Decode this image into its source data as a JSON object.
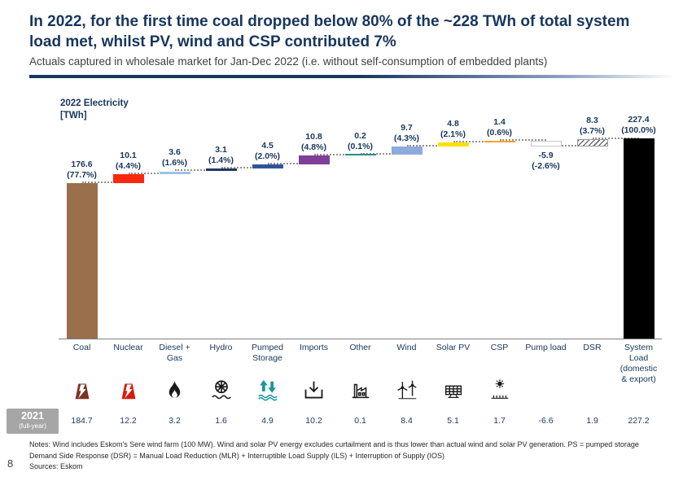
{
  "header": {
    "title": "In 2022, for the first time coal dropped below 80% of the ~228 TWh of total system load met, whilst PV, wind and CSP contributed 7%",
    "subtitle": "Actuals captured in wholesale market for Jan-Dec 2022 (i.e. without self-consumption of embedded plants)"
  },
  "colors": {
    "accent": "#17365D",
    "divider": "#17365D",
    "connector": "#929292",
    "year_box": "#A6A6A6"
  },
  "chart_data": {
    "type": "bar",
    "subtype": "waterfall",
    "unit": "TWh",
    "axis_title": [
      "2022 Electricity",
      "[TWh]"
    ],
    "grid": false,
    "total": 227.4,
    "categories": [
      {
        "label": "Coal",
        "value": 176.6,
        "value_label": "176.6",
        "pct_label": "(77.7%)",
        "color": "#9A6F4C",
        "kind": "delta",
        "icon": "coal-plant-icon"
      },
      {
        "label": "Nuclear",
        "value": 10.1,
        "value_label": "10.1",
        "pct_label": "(4.4%)",
        "color": "#F8280E",
        "kind": "delta",
        "icon": "nuclear-plant-icon"
      },
      {
        "label": "Diesel + Gas",
        "value": 3.6,
        "value_label": "3.6",
        "pct_label": "(1.6%)",
        "color": "#9DC3E6",
        "kind": "delta",
        "icon": "flame-icon"
      },
      {
        "label": "Hydro",
        "value": 3.1,
        "value_label": "3.1",
        "pct_label": "(1.4%)",
        "color": "#1F3864",
        "kind": "delta",
        "icon": "water-wheel-icon"
      },
      {
        "label": "Pumped Storage",
        "value": 4.5,
        "value_label": "4.5",
        "pct_label": "(2.0%)",
        "color": "#2F5597",
        "kind": "delta",
        "icon": "pumped-storage-icon"
      },
      {
        "label": "Imports",
        "value": 10.8,
        "value_label": "10.8",
        "pct_label": "(4.8%)",
        "color": "#7F3F98",
        "kind": "delta",
        "icon": "import-arrow-icon"
      },
      {
        "label": "Other",
        "value": 0.2,
        "value_label": "0.2",
        "pct_label": "(0.1%)",
        "color": "#2E8B8B",
        "kind": "delta",
        "icon": "factory-icon"
      },
      {
        "label": "Wind",
        "value": 9.7,
        "value_label": "9.7",
        "pct_label": "(4.3%)",
        "color": "#8FAADC",
        "kind": "delta",
        "icon": "wind-turbine-icon"
      },
      {
        "label": "Solar PV",
        "value": 4.8,
        "value_label": "4.8",
        "pct_label": "(2.1%)",
        "color": "#FFE000",
        "kind": "delta",
        "icon": "solar-panel-icon"
      },
      {
        "label": "CSP",
        "value": 1.4,
        "value_label": "1.4",
        "pct_label": "(0.6%)",
        "color": "#FFA228",
        "kind": "delta",
        "icon": "csp-sun-icon"
      },
      {
        "label": "Pump load",
        "value": -5.9,
        "value_label": "-5.9",
        "pct_label": "(-2.6%)",
        "color": "#FFFFFF",
        "kind": "negative",
        "border": "#C9C9C9",
        "icon": null
      },
      {
        "label": "DSR",
        "value": 8.3,
        "value_label": "8.3",
        "pct_label": "(3.7%)",
        "color": "#BFBFBF",
        "kind": "delta",
        "pattern": "hatch",
        "icon": null
      },
      {
        "label": "System Load (domestic & export)",
        "value": 227.4,
        "value_label": "227.4",
        "pct_label": "(100.0%)",
        "color": "#000000",
        "kind": "total",
        "icon": null
      }
    ]
  },
  "row2021": {
    "label": "2021",
    "sublabel": "(full-year)",
    "values": [
      "184.7",
      "12.2",
      "3.2",
      "1.6",
      "4.9",
      "10.2",
      "0.1",
      "8.4",
      "5.1",
      "1.7",
      "-6.6",
      "1.9",
      "227.2"
    ]
  },
  "notes": [
    "Notes: Wind includes Eskom's Sere wind farm (100 MW). Wind and solar PV energy excludes curtailment and is thus lower than actual wind and solar PV generation. PS = pumped storage",
    "Demand Side Response (DSR) = Manual Load Reduction (MLR) + Interruptible Load Supply (ILS) + Interruption of Supply (IOS)",
    "Sources: Eskom"
  ],
  "page_number": "8"
}
